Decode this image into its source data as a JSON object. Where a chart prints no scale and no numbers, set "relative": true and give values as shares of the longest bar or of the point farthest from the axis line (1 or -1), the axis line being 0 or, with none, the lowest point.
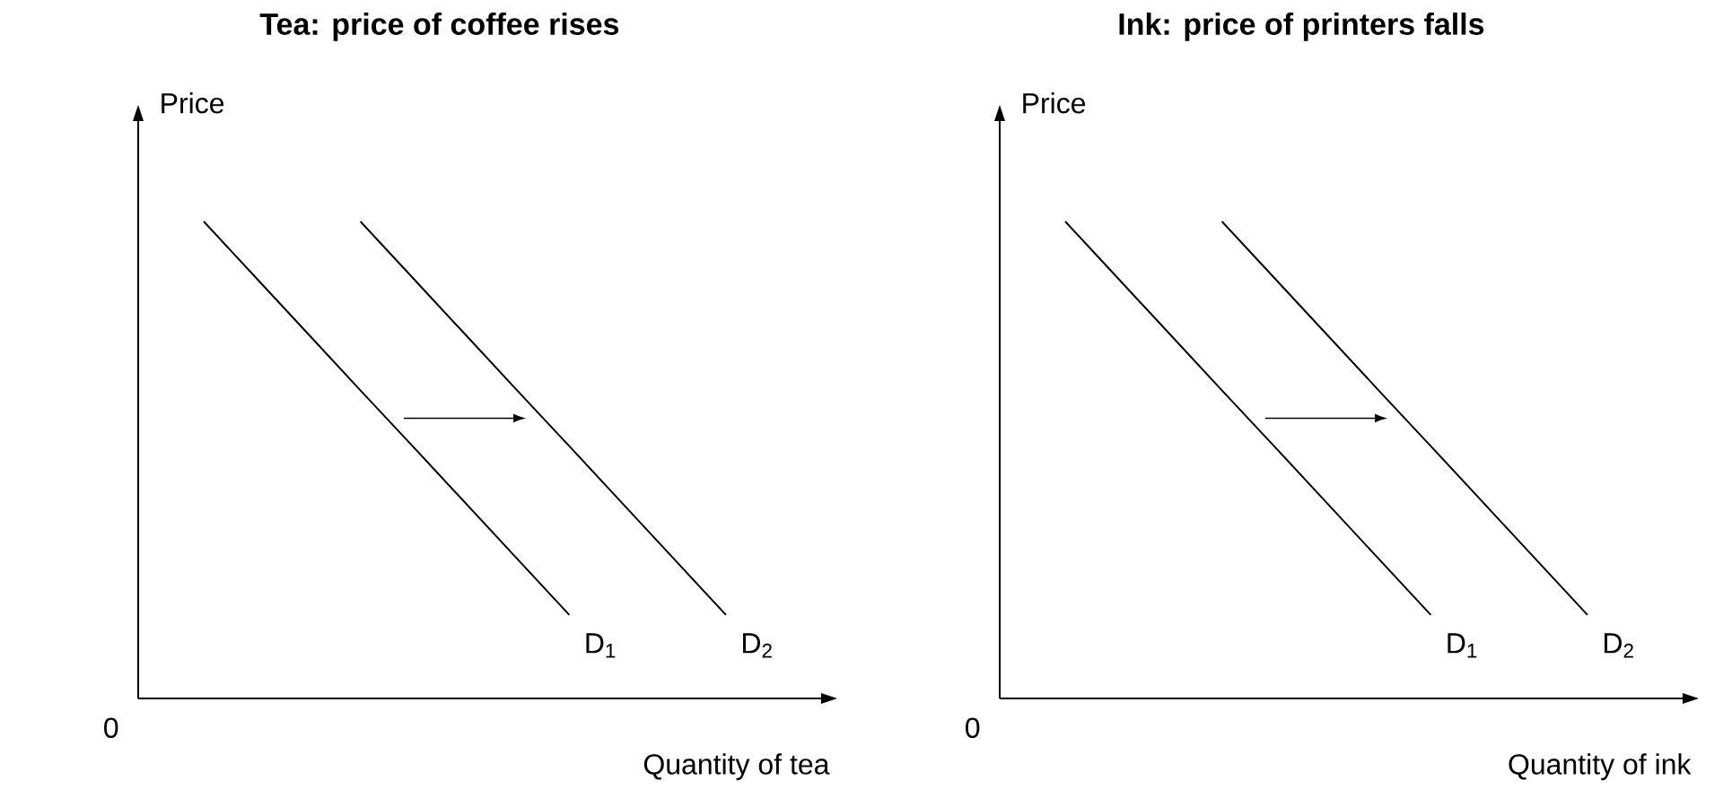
{
  "chart_data": [
    {
      "type": "line",
      "title": "Tea: price of coffee rises",
      "xlabel": "Quantity of tea",
      "ylabel": "Price",
      "relative": true,
      "annotations": [
        "0"
      ],
      "categories": [
        null,
        null,
        null,
        null,
        null,
        null,
        null,
        null,
        null,
        null,
        null
      ],
      "series": [
        {
          "name": "D$_{1}$",
          "color": "#000000",
          "values": [
            1,
            0.882,
            0.764,
            0.646,
            0.529,
            0.411,
            0.293,
            0.175,
            null,
            null,
            null
          ]
        },
        {
          "name": "D$_{2}$",
          "color": "#000000",
          "values": [
            null,
            null,
            null,
            1,
            0.882,
            0.764,
            0.646,
            0.529,
            0.411,
            0.293,
            0.175
          ]
        }
      ]
    },
    {
      "type": "line",
      "title": "Ink: price of printers falls",
      "xlabel": "Quantity of ink",
      "ylabel": "Price",
      "relative": true,
      "annotations": [
        "0"
      ],
      "categories": [
        null,
        null,
        null,
        null,
        null,
        null,
        null,
        null,
        null,
        null,
        null
      ],
      "series": [
        {
          "name": "D$_{1}$",
          "color": "#000000",
          "values": [
            1,
            0.882,
            0.764,
            0.646,
            0.529,
            0.411,
            0.293,
            0.175,
            null,
            null,
            null
          ]
        },
        {
          "name": "D$_{2}$",
          "color": "#000000",
          "values": [
            null,
            null,
            null,
            1,
            0.882,
            0.764,
            0.646,
            0.529,
            0.411,
            0.293,
            0.175
          ]
        }
      ]
    }
  ]
}
